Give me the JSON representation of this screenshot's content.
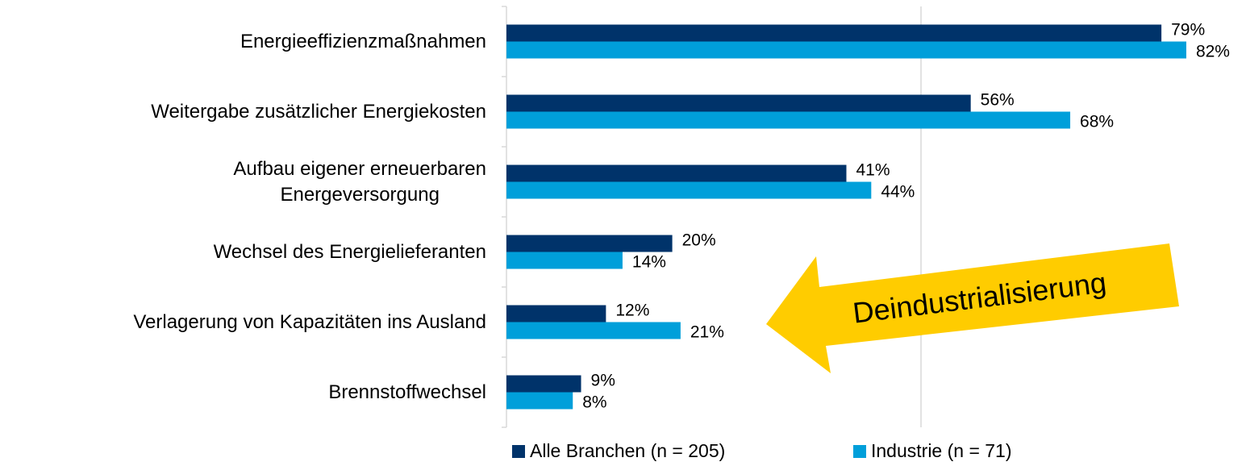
{
  "chart_data": {
    "type": "bar",
    "orientation": "horizontal",
    "categories": [
      "Energieeffizienzmaßnahmen",
      "Weitergabe zusätzlicher Energiekosten",
      "Aufbau eigener erneuerbaren\nEnergeversorgung",
      "Wechsel des Energielieferanten",
      "Verlagerung von Kapazitäten ins Ausland",
      "Brennstoffwechsel"
    ],
    "series": [
      {
        "name": "Alle Branchen (n = 205)",
        "color": "#00336a",
        "values": [
          79,
          56,
          41,
          20,
          12,
          9
        ],
        "value_labels": [
          "79%",
          "56%",
          "41%",
          "20%",
          "12%",
          "9%"
        ]
      },
      {
        "name": "Industrie (n = 71)",
        "color": "#009fda",
        "values": [
          82,
          68,
          44,
          14,
          21,
          8
        ],
        "value_labels": [
          "82%",
          "68%",
          "44%",
          "14%",
          "21%",
          "8%"
        ]
      }
    ],
    "xlim": [
      0,
      100
    ],
    "xticks": [
      0,
      50
    ],
    "grid": true,
    "legend": "bottom",
    "annotation": "Deindustrialisierung",
    "annotation_color": "#ffcc00"
  }
}
